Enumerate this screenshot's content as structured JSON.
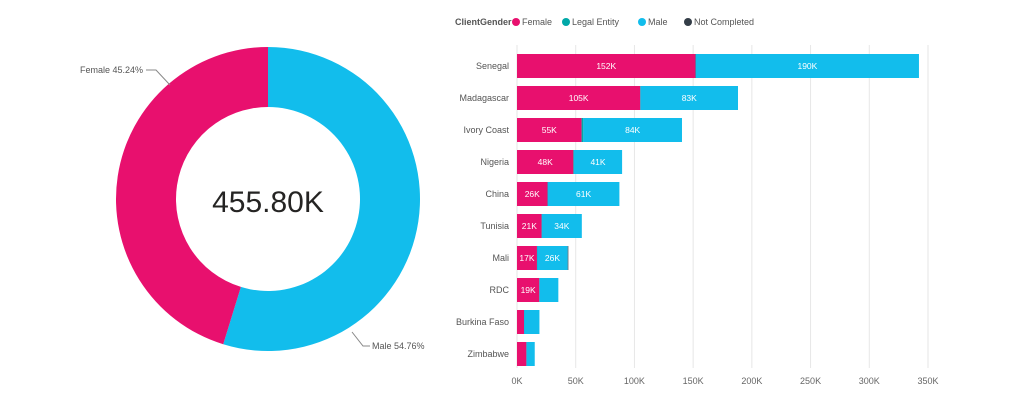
{
  "colors": {
    "female": "#E8106E",
    "legal_entity": "#01A8A8",
    "male": "#12BDEC",
    "not_completed": "#333D47",
    "text": "#666666",
    "grid": "#E6E6E6"
  },
  "chart_data": [
    {
      "type": "pie",
      "variant": "donut",
      "center_label": "455.80K",
      "slices": [
        {
          "label": "Female",
          "percent": 45.24,
          "data_label": "Female 45.24%",
          "color": "#E8106E"
        },
        {
          "label": "Male",
          "percent": 54.76,
          "data_label": "Male 54.76%",
          "color": "#12BDEC"
        }
      ]
    },
    {
      "type": "bar",
      "orientation": "horizontal",
      "stacked": true,
      "legend_title": "ClientGender",
      "legend_position": "top",
      "categories": [
        "Senegal",
        "Madagascar",
        "Ivory Coast",
        "Nigeria",
        "China",
        "Tunisia",
        "Mali",
        "RDC",
        "Burkina Faso",
        "Zimbabwe"
      ],
      "series": [
        {
          "name": "Female",
          "color": "#E8106E",
          "values": [
            152,
            105,
            55,
            48,
            26,
            21,
            17,
            19,
            6,
            8
          ],
          "labels": [
            "152K",
            "105K",
            "55K",
            "48K",
            "26K",
            "21K",
            "17K",
            "19K",
            "",
            ""
          ]
        },
        {
          "name": "Legal Entity",
          "color": "#01A8A8",
          "values": [
            0.3,
            0.2,
            1.5,
            0.5,
            0.2,
            0.2,
            0.2,
            0.2,
            0.1,
            0.1
          ],
          "labels": [
            "",
            "",
            "",
            "",
            "",
            "",
            "",
            "",
            "",
            ""
          ]
        },
        {
          "name": "Male",
          "color": "#12BDEC",
          "values": [
            190,
            83,
            84,
            41,
            61,
            34,
            26,
            16,
            13,
            7
          ],
          "labels": [
            "190K",
            "83K",
            "84K",
            "41K",
            "61K",
            "34K",
            "26K",
            "",
            "",
            ""
          ]
        },
        {
          "name": "Not Completed",
          "color": "#333D47",
          "values": [
            0,
            0,
            0,
            0,
            0,
            0,
            0.5,
            0,
            0,
            0
          ],
          "labels": [
            "",
            "",
            "",
            "",
            "",
            "",
            "",
            "",
            "",
            ""
          ]
        }
      ],
      "xlim": [
        0,
        350
      ],
      "x_unit": "K",
      "x_tick_labels": [
        "0K",
        "50K",
        "100K",
        "150K",
        "200K",
        "250K",
        "300K",
        "350K"
      ],
      "grid": true
    }
  ]
}
